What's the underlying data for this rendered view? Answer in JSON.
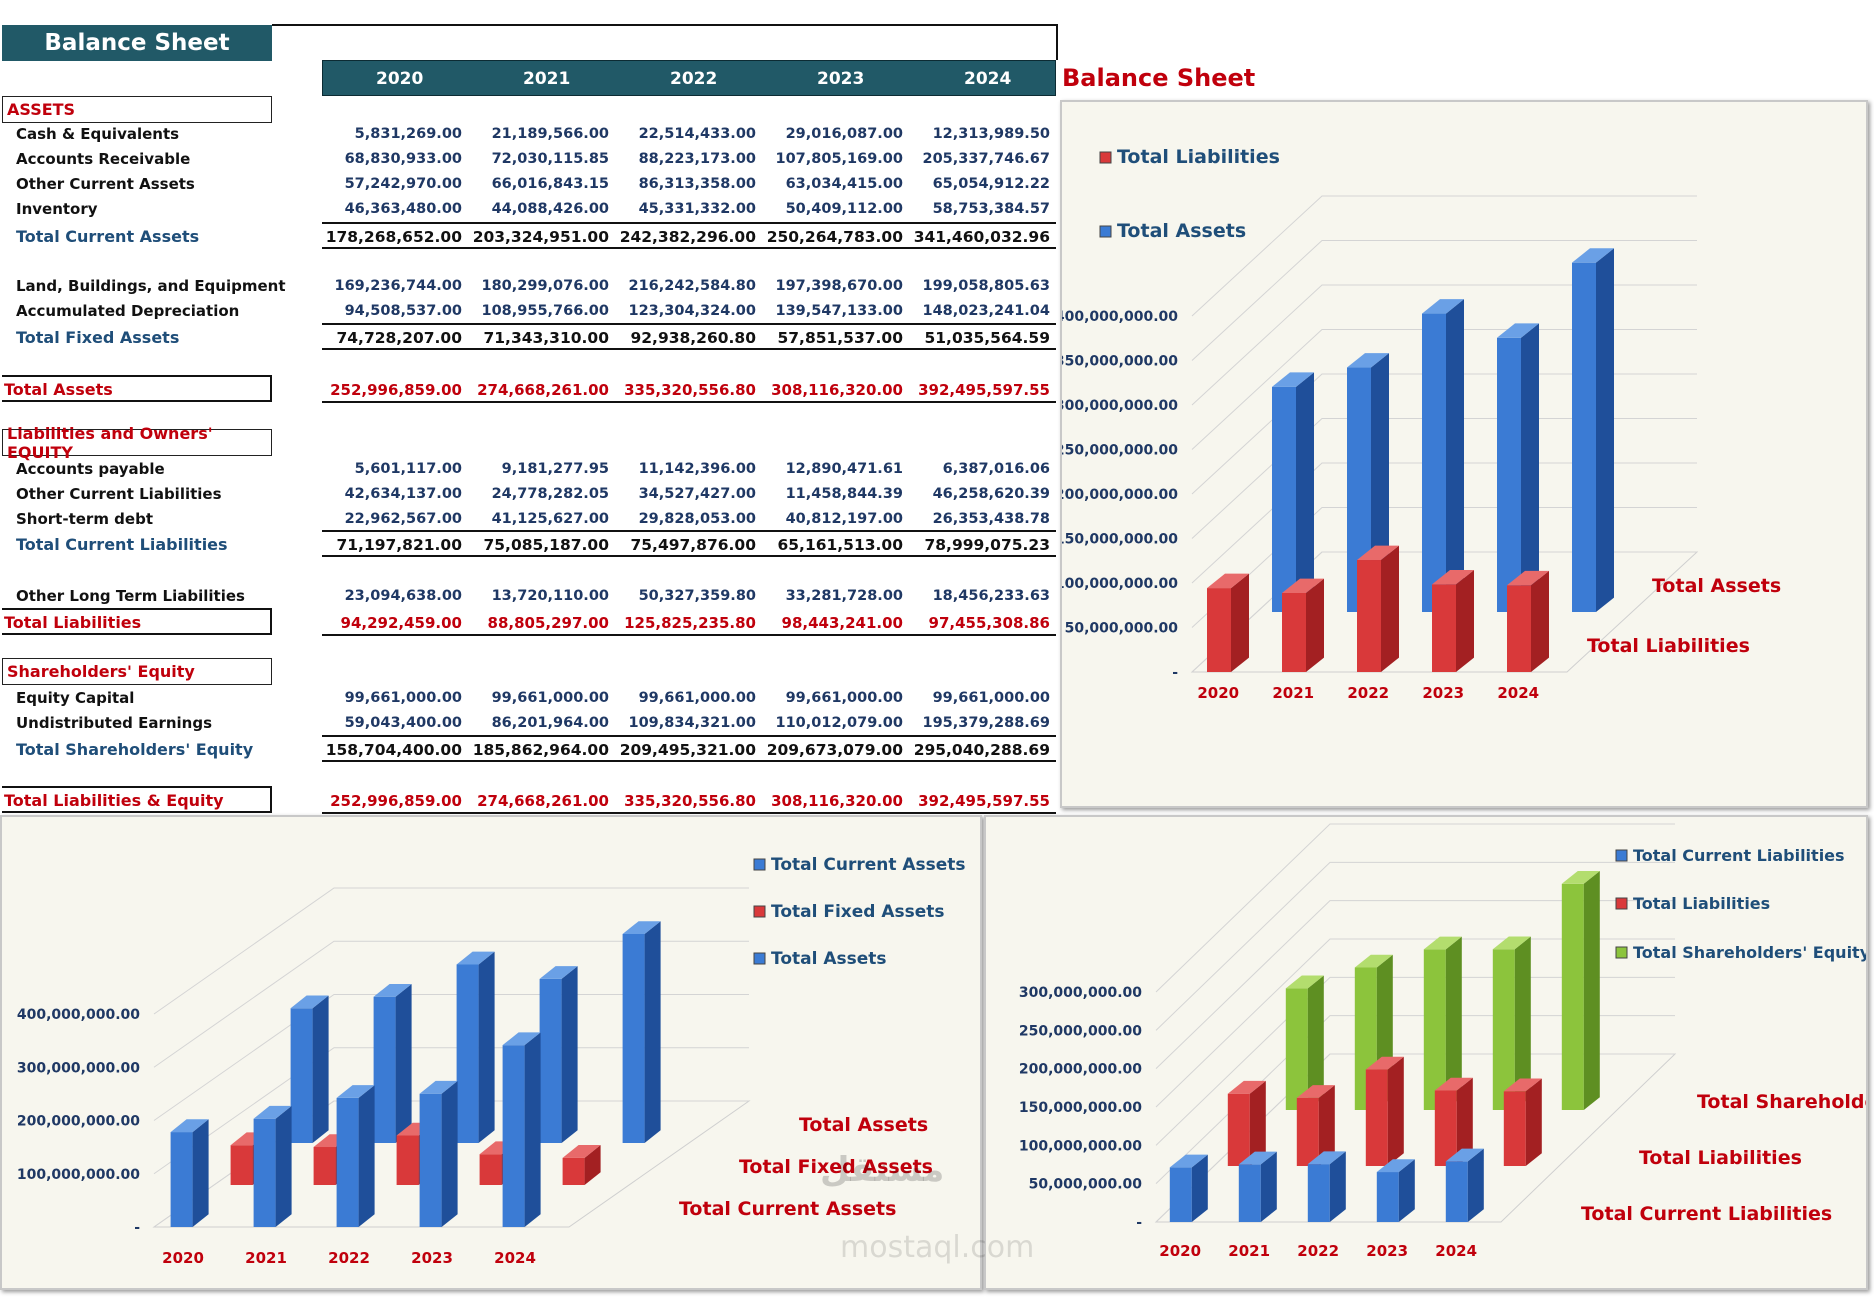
{
  "sheet": {
    "title": "Balance Sheet",
    "years": [
      "2020",
      "2021",
      "2022",
      "2023",
      "2024"
    ],
    "sections": {
      "assets": "ASSETS",
      "liab": "Liabilities and Owners' EQUITY",
      "equity": "Shareholders' Equity"
    },
    "rows": {
      "cash": {
        "label": "Cash & Equivalents",
        "values": [
          "5,831,269.00",
          "21,189,566.00",
          "22,514,433.00",
          "29,016,087.00",
          "12,313,989.50"
        ]
      },
      "ar": {
        "label": "Accounts Receivable",
        "values": [
          "68,830,933.00",
          "72,030,115.85",
          "88,223,173.00",
          "107,805,169.00",
          "205,337,746.67"
        ]
      },
      "oca": {
        "label": "Other Current Assets",
        "values": [
          "57,242,970.00",
          "66,016,843.15",
          "86,313,358.00",
          "63,034,415.00",
          "65,054,912.22"
        ]
      },
      "inv": {
        "label": "Inventory",
        "values": [
          "46,363,480.00",
          "44,088,426.00",
          "45,331,332.00",
          "50,409,112.00",
          "58,753,384.57"
        ]
      },
      "tca": {
        "label": "Total Current Assets",
        "values": [
          "178,268,652.00",
          "203,324,951.00",
          "242,382,296.00",
          "250,264,783.00",
          "341,460,032.96"
        ]
      },
      "lbe": {
        "label": "Land, Buildings, and Equipment",
        "values": [
          "169,236,744.00",
          "180,299,076.00",
          "216,242,584.80",
          "197,398,670.00",
          "199,058,805.63"
        ]
      },
      "ad": {
        "label": "Accumulated Depreciation",
        "values": [
          "94,508,537.00",
          "108,955,766.00",
          "123,304,324.00",
          "139,547,133.00",
          "148,023,241.04"
        ]
      },
      "tfa": {
        "label": "Total Fixed Assets",
        "values": [
          "74,728,207.00",
          "71,343,310.00",
          "92,938,260.80",
          "57,851,537.00",
          "51,035,564.59"
        ]
      },
      "ta": {
        "label": "Total Assets",
        "values": [
          "252,996,859.00",
          "274,668,261.00",
          "335,320,556.80",
          "308,116,320.00",
          "392,495,597.55"
        ]
      },
      "ap": {
        "label": "Accounts payable",
        "values": [
          "5,601,117.00",
          "9,181,277.95",
          "11,142,396.00",
          "12,890,471.61",
          "6,387,016.06"
        ]
      },
      "ocl": {
        "label": "Other Current Liabilities",
        "values": [
          "42,634,137.00",
          "24,778,282.05",
          "34,527,427.00",
          "11,458,844.39",
          "46,258,620.39"
        ]
      },
      "std": {
        "label": "Short-term debt",
        "values": [
          "22,962,567.00",
          "41,125,627.00",
          "29,828,053.00",
          "40,812,197.00",
          "26,353,438.78"
        ]
      },
      "tcl": {
        "label": "Total Current Liabilities",
        "values": [
          "71,197,821.00",
          "75,085,187.00",
          "75,497,876.00",
          "65,161,513.00",
          "78,999,075.23"
        ]
      },
      "oltl": {
        "label": "Other Long Term Liabilities",
        "values": [
          "23,094,638.00",
          "13,720,110.00",
          "50,327,359.80",
          "33,281,728.00",
          "18,456,233.63"
        ]
      },
      "tl": {
        "label": "Total Liabilities",
        "values": [
          "94,292,459.00",
          "88,805,297.00",
          "125,825,235.80",
          "98,443,241.00",
          "97,455,308.86"
        ]
      },
      "ec": {
        "label": "Equity Capital",
        "values": [
          "99,661,000.00",
          "99,661,000.00",
          "99,661,000.00",
          "99,661,000.00",
          "99,661,000.00"
        ]
      },
      "ue": {
        "label": "Undistributed Earnings",
        "values": [
          "59,043,400.00",
          "86,201,964.00",
          "109,834,321.00",
          "110,012,079.00",
          "195,379,288.69"
        ]
      },
      "tse": {
        "label": "Total Shareholders' Equity",
        "values": [
          "158,704,400.00",
          "185,862,964.00",
          "209,495,321.00",
          "209,673,079.00",
          "295,040,288.69"
        ]
      },
      "tle": {
        "label": "Total Liabilities & Equity",
        "values": [
          "252,996,859.00",
          "274,668,261.00",
          "335,320,556.80",
          "308,116,320.00",
          "392,495,597.55"
        ]
      }
    }
  },
  "side_title": "Balance Sheet",
  "colors": {
    "header": "#215967",
    "red": "#c0000c",
    "blue": "#2e6fc0",
    "green": "#8cc43c",
    "panel": "#f7f6ee"
  },
  "chart_data": [
    {
      "type": "bar",
      "title": "",
      "categories": [
        "2020",
        "2021",
        "2022",
        "2023",
        "2024"
      ],
      "series": [
        {
          "name": "Total Liabilities",
          "values": [
            94292459.0,
            88805297.0,
            125825235.8,
            98443241.0,
            97455308.86
          ]
        },
        {
          "name": "Total Assets",
          "values": [
            252996859.0,
            274668261.0,
            335320556.8,
            308116320.0,
            392495597.55
          ]
        }
      ],
      "yticks": [
        "-",
        "50,000,000.00",
        "100,000,000.00",
        "150,000,000.00",
        "200,000,000.00",
        "250,000,000.00",
        "300,000,000.00",
        "350,000,000.00",
        "400,000,000.00"
      ],
      "ylim": [
        0,
        400000000
      ],
      "legend": "top-left",
      "grid": true
    },
    {
      "type": "bar",
      "title": "",
      "categories": [
        "2020",
        "2021",
        "2022",
        "2023",
        "2024"
      ],
      "series": [
        {
          "name": "Total Current Assets",
          "values": [
            178268652.0,
            203324951.0,
            242382296.0,
            250264783.0,
            341460032.96
          ]
        },
        {
          "name": "Total Fixed Assets",
          "values": [
            74728207.0,
            71343310.0,
            92938260.8,
            57851537.0,
            51035564.59
          ]
        },
        {
          "name": "Total Assets",
          "values": [
            252996859.0,
            274668261.0,
            335320556.8,
            308116320.0,
            392495597.55
          ]
        }
      ],
      "yticks": [
        "-",
        "100,000,000.00",
        "200,000,000.00",
        "300,000,000.00",
        "400,000,000.00"
      ],
      "ylim": [
        0,
        400000000
      ],
      "legend": "top-right",
      "grid": true
    },
    {
      "type": "bar",
      "title": "",
      "categories": [
        "2020",
        "2021",
        "2022",
        "2023",
        "2024"
      ],
      "series": [
        {
          "name": "Total Current Liabilities",
          "values": [
            71197821.0,
            75085187.0,
            75497876.0,
            65161513.0,
            78999075.23
          ]
        },
        {
          "name": "Total Liabilities",
          "values": [
            94292459.0,
            88805297.0,
            125825235.8,
            98443241.0,
            97455308.86
          ]
        },
        {
          "name": "Total Shareholders' Equity",
          "values": [
            158704400.0,
            185862964.0,
            209495321.0,
            209673079.0,
            295040288.69
          ]
        }
      ],
      "yticks": [
        "-",
        "50,000,000.00",
        "100,000,000.00",
        "150,000,000.00",
        "200,000,000.00",
        "250,000,000.00",
        "300,000,000.00"
      ],
      "ylim": [
        0,
        300000000
      ],
      "legend": "top-right",
      "grid": true
    }
  ],
  "watermark": {
    "arabic": "مستقل",
    "latin": "mostaql.com"
  }
}
